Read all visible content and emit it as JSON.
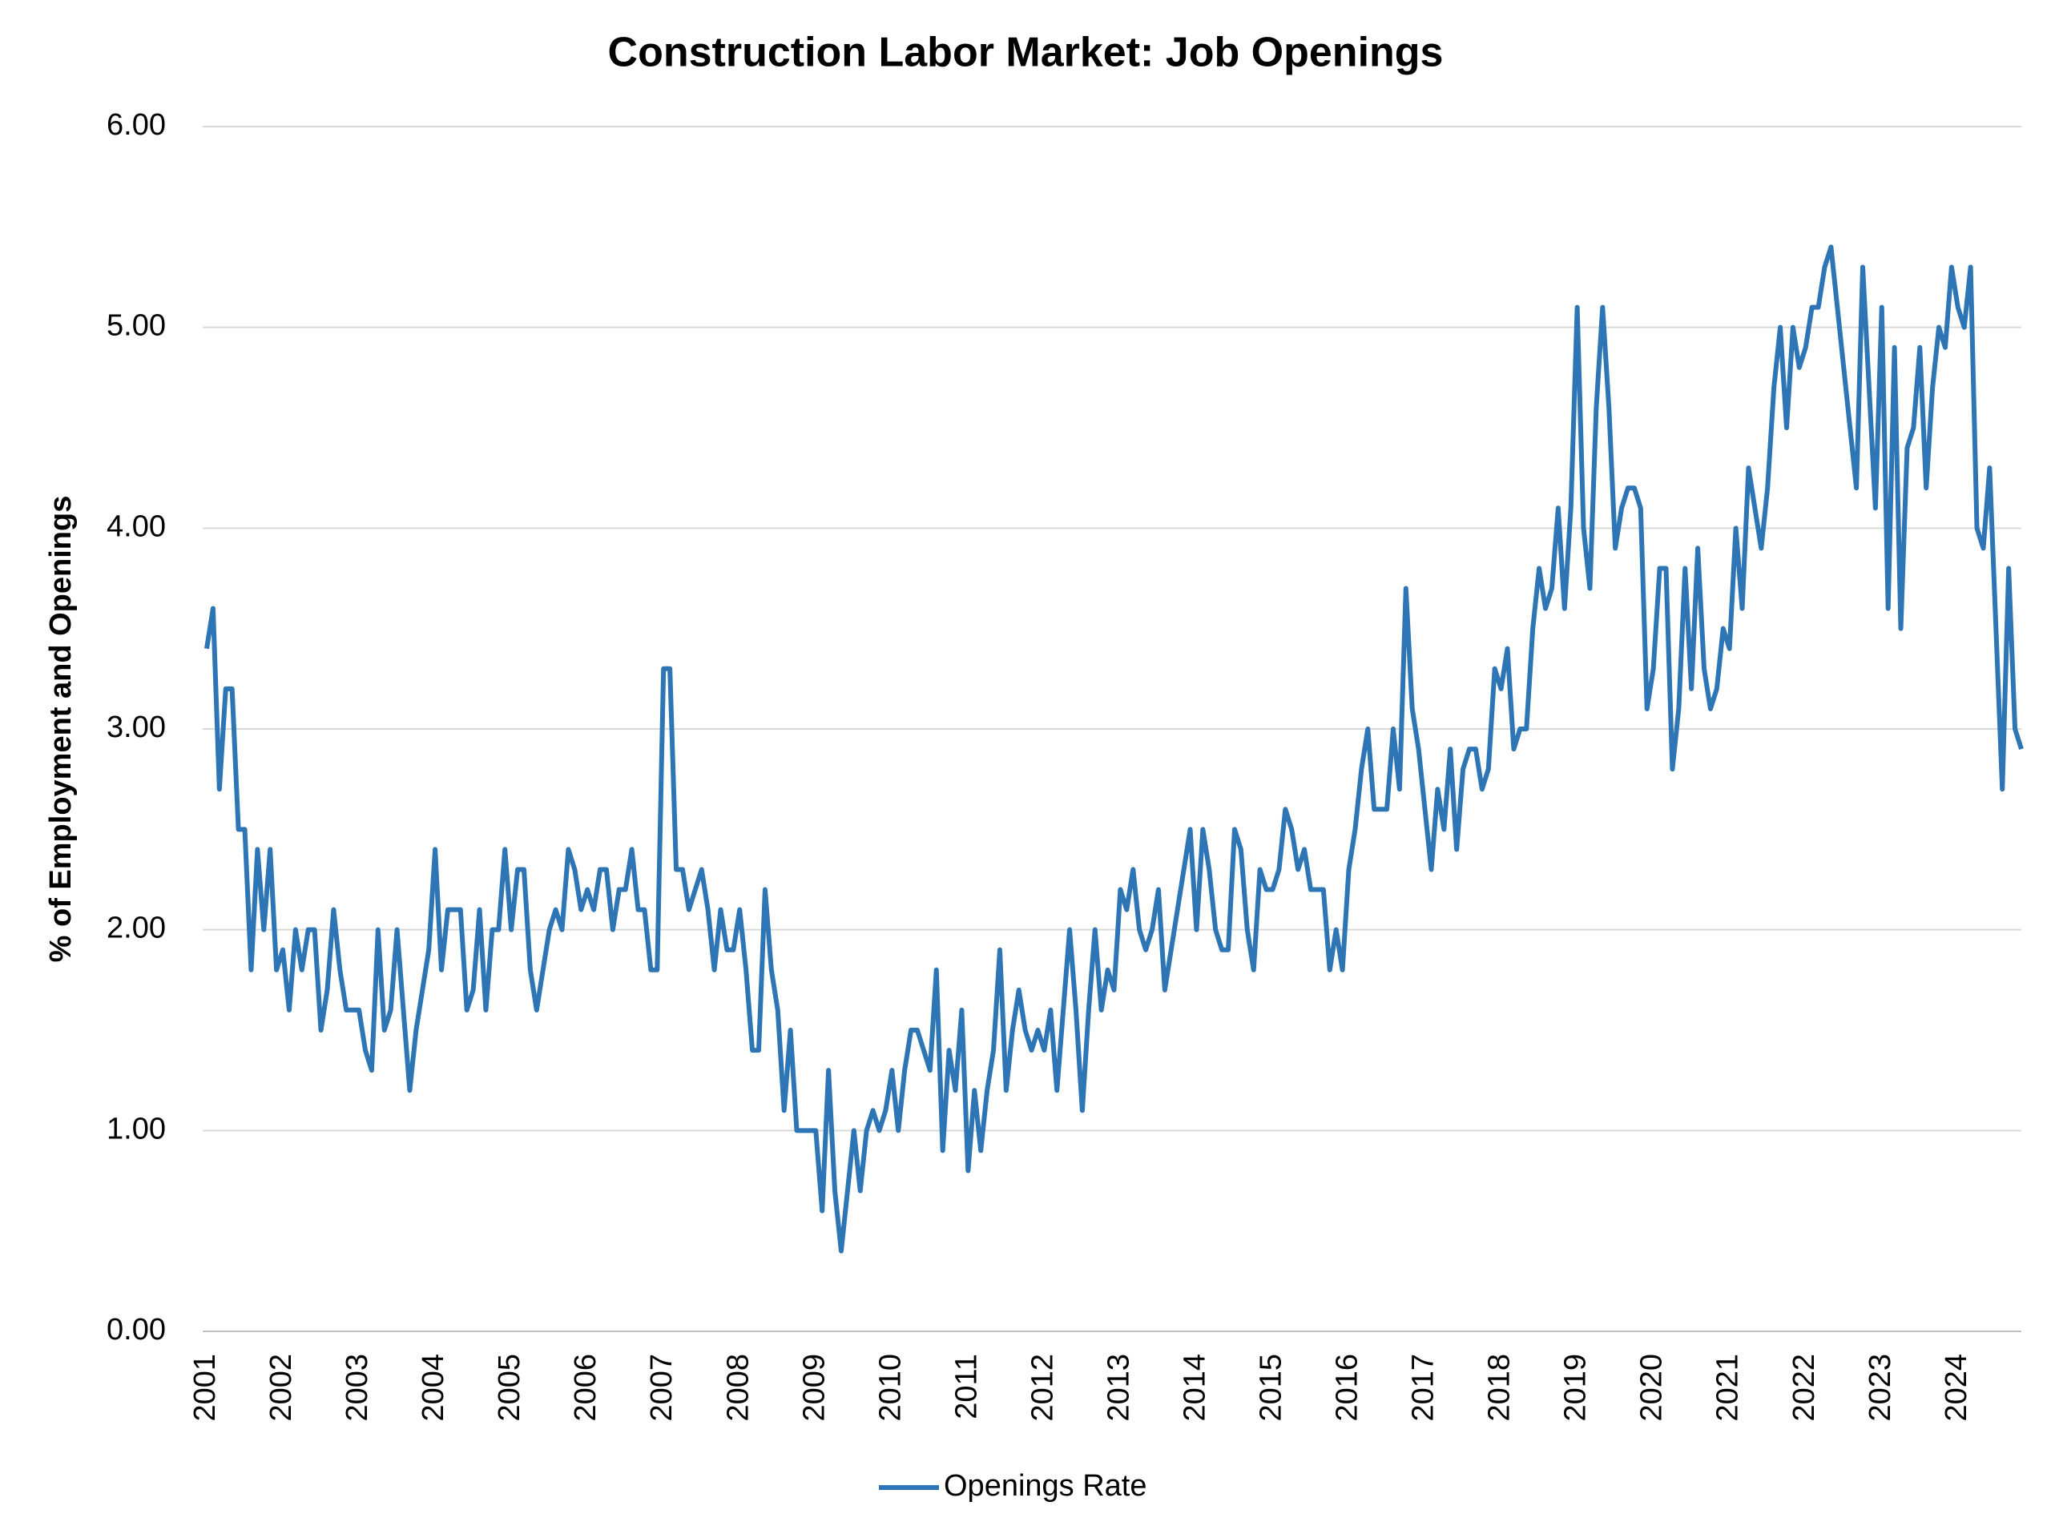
{
  "chart_data": {
    "type": "line",
    "title": "Construction Labor Market: Job Openings",
    "y_label": "% of Employment and Openings",
    "categories": [
      "2001",
      null,
      null,
      null,
      null,
      null,
      null,
      null,
      null,
      null,
      null,
      null,
      "2002",
      null,
      null,
      null,
      null,
      null,
      null,
      null,
      null,
      null,
      null,
      null,
      "2003",
      null,
      null,
      null,
      null,
      null,
      null,
      null,
      null,
      null,
      null,
      null,
      "2004",
      null,
      null,
      null,
      null,
      null,
      null,
      null,
      null,
      null,
      null,
      null,
      "2005",
      null,
      null,
      null,
      null,
      null,
      null,
      null,
      null,
      null,
      null,
      null,
      "2006",
      null,
      null,
      null,
      null,
      null,
      null,
      null,
      null,
      null,
      null,
      null,
      "2007",
      null,
      null,
      null,
      null,
      null,
      null,
      null,
      null,
      null,
      null,
      null,
      "2008",
      null,
      null,
      null,
      null,
      null,
      null,
      null,
      null,
      null,
      null,
      null,
      "2009",
      null,
      null,
      null,
      null,
      null,
      null,
      null,
      null,
      null,
      null,
      null,
      "2010",
      null,
      null,
      null,
      null,
      null,
      null,
      null,
      null,
      null,
      null,
      null,
      "2011",
      null,
      null,
      null,
      null,
      null,
      null,
      null,
      null,
      null,
      null,
      null,
      "2012",
      null,
      null,
      null,
      null,
      null,
      null,
      null,
      null,
      null,
      null,
      null,
      "2013",
      null,
      null,
      null,
      null,
      null,
      null,
      null,
      null,
      null,
      null,
      null,
      "2014",
      null,
      null,
      null,
      null,
      null,
      null,
      null,
      null,
      null,
      null,
      null,
      "2015",
      null,
      null,
      null,
      null,
      null,
      null,
      null,
      null,
      null,
      null,
      null,
      "2016",
      null,
      null,
      null,
      null,
      null,
      null,
      null,
      null,
      null,
      null,
      null,
      "2017",
      null,
      null,
      null,
      null,
      null,
      null,
      null,
      null,
      null,
      null,
      null,
      "2018",
      null,
      null,
      null,
      null,
      null,
      null,
      null,
      null,
      null,
      null,
      null,
      "2019",
      null,
      null,
      null,
      null,
      null,
      null,
      null,
      null,
      null,
      null,
      null,
      "2020",
      null,
      null,
      null,
      null,
      null,
      null,
      null,
      null,
      null,
      null,
      null,
      "2021",
      null,
      null,
      null,
      null,
      null,
      null,
      null,
      null,
      null,
      null,
      null,
      "2022",
      null,
      null,
      null,
      null,
      null,
      null,
      null,
      null,
      null,
      null,
      null,
      "2023",
      null,
      null,
      null,
      null,
      null,
      null,
      null,
      null,
      null,
      null,
      null,
      "2024",
      null,
      null,
      null,
      null,
      null,
      null,
      null,
      null,
      null,
      null
    ],
    "series": [
      {
        "name": "Openings Rate",
        "color": "#2e75b6",
        "values": [
          3.4,
          3.6,
          2.7,
          3.2,
          3.2,
          2.5,
          2.5,
          1.8,
          2.4,
          2.0,
          2.4,
          1.8,
          1.9,
          1.6,
          2.0,
          1.8,
          2.0,
          2.0,
          1.5,
          1.7,
          2.1,
          1.8,
          1.6,
          1.6,
          1.6,
          1.4,
          1.3,
          2.0,
          1.5,
          1.6,
          2.0,
          1.6,
          1.2,
          1.5,
          1.7,
          1.9,
          2.4,
          1.8,
          2.1,
          2.1,
          2.1,
          1.6,
          1.7,
          2.1,
          1.6,
          2.0,
          2.0,
          2.4,
          2.0,
          2.3,
          2.3,
          1.8,
          1.6,
          1.8,
          2.0,
          2.1,
          2.0,
          2.4,
          2.3,
          2.1,
          2.2,
          2.1,
          2.3,
          2.3,
          2.0,
          2.2,
          2.2,
          2.4,
          2.1,
          2.1,
          1.8,
          1.8,
          3.3,
          3.3,
          2.3,
          2.3,
          2.1,
          2.2,
          2.3,
          2.1,
          1.8,
          2.1,
          1.9,
          1.9,
          2.1,
          1.8,
          1.4,
          1.4,
          2.2,
          1.8,
          1.6,
          1.1,
          1.5,
          1.0,
          1.0,
          1.0,
          1.0,
          0.6,
          1.3,
          0.7,
          0.4,
          0.7,
          1.0,
          0.7,
          1.0,
          1.1,
          1.0,
          1.1,
          1.3,
          1.0,
          1.3,
          1.5,
          1.5,
          1.4,
          1.3,
          1.8,
          0.9,
          1.4,
          1.2,
          1.6,
          0.8,
          1.2,
          0.9,
          1.2,
          1.4,
          1.9,
          1.2,
          1.5,
          1.7,
          1.5,
          1.4,
          1.5,
          1.4,
          1.6,
          1.2,
          1.6,
          2.0,
          1.6,
          1.1,
          1.6,
          2.0,
          1.6,
          1.8,
          1.7,
          2.2,
          2.1,
          2.3,
          2.0,
          1.9,
          2.0,
          2.2,
          1.7,
          1.9,
          2.1,
          2.3,
          2.5,
          2.0,
          2.5,
          2.3,
          2.0,
          1.9,
          1.9,
          2.5,
          2.4,
          2.0,
          1.8,
          2.3,
          2.2,
          2.2,
          2.3,
          2.6,
          2.5,
          2.3,
          2.4,
          2.2,
          2.2,
          2.2,
          1.8,
          2.0,
          1.8,
          2.3,
          2.5,
          2.8,
          3.0,
          2.6,
          2.6,
          2.6,
          3.0,
          2.7,
          3.7,
          3.1,
          2.9,
          2.6,
          2.3,
          2.7,
          2.5,
          2.9,
          2.4,
          2.8,
          2.9,
          2.9,
          2.7,
          2.8,
          3.3,
          3.2,
          3.4,
          2.9,
          3.0,
          3.0,
          3.5,
          3.8,
          3.6,
          3.7,
          4.1,
          3.6,
          4.1,
          5.1,
          4.0,
          3.7,
          4.6,
          5.1,
          4.6,
          3.9,
          4.1,
          4.2,
          4.2,
          4.1,
          3.1,
          3.3,
          3.8,
          3.8,
          2.8,
          3.1,
          3.8,
          3.2,
          3.9,
          3.3,
          3.1,
          3.2,
          3.5,
          3.4,
          4.0,
          3.6,
          4.3,
          4.1,
          3.9,
          4.2,
          4.7,
          5.0,
          4.5,
          5.0,
          4.8,
          4.9,
          5.1,
          5.1,
          5.3,
          5.4,
          5.1,
          4.8,
          4.5,
          4.2,
          5.3,
          4.7,
          4.1,
          5.1,
          3.6,
          4.9,
          3.5,
          4.4,
          4.5,
          4.9,
          4.2,
          4.7,
          5.0,
          4.9,
          5.3,
          5.1,
          5.0,
          5.3,
          4.0,
          3.9,
          4.3,
          3.5,
          2.7,
          3.8,
          3.0,
          2.9
        ]
      }
    ],
    "ylim": [
      0,
      6
    ],
    "yticks": [
      {
        "value": 0,
        "label": "0.00"
      },
      {
        "value": 1,
        "label": "1.00"
      },
      {
        "value": 2,
        "label": "2.00"
      },
      {
        "value": 3,
        "label": "3.00"
      },
      {
        "value": 4,
        "label": "4.00"
      },
      {
        "value": 5,
        "label": "5.00"
      },
      {
        "value": 6,
        "label": "6.00"
      }
    ],
    "grid": true,
    "legend": "bottom"
  }
}
